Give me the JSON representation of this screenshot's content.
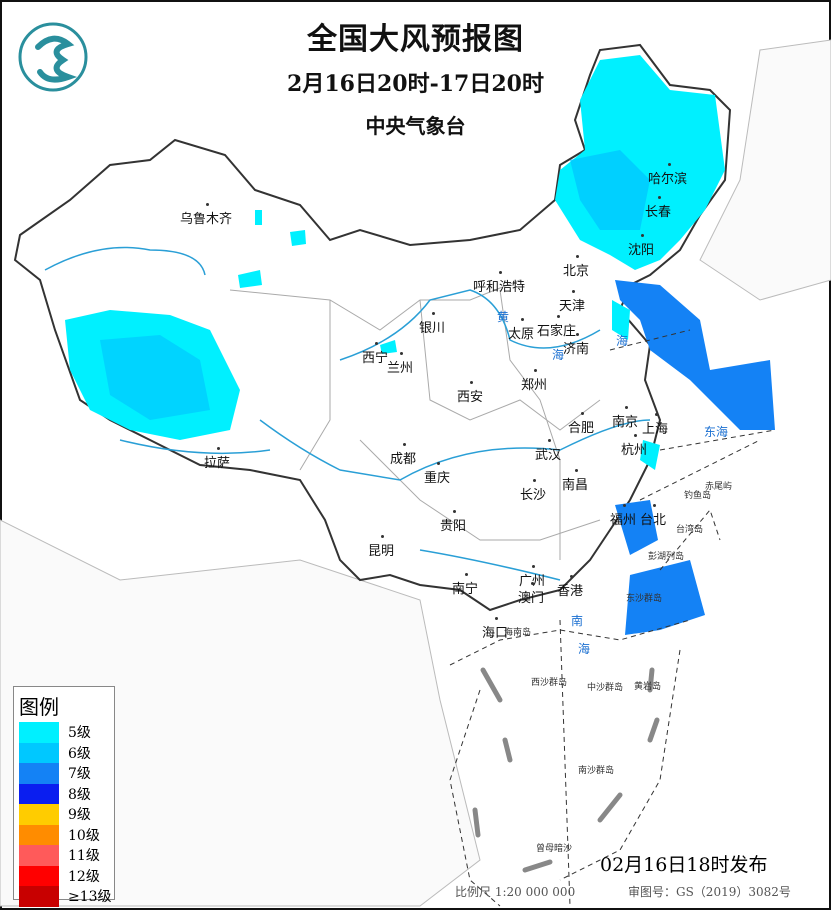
{
  "title": "全国大风预报图",
  "period": "2月16日20时-17日20时",
  "issuer": "中央气象台",
  "issued": "02月16日18时发布",
  "scale": "比例尺  1:20 000 000",
  "approval": "审图号：GS（2019）3082号",
  "legend": {
    "title": "图例",
    "items": [
      {
        "label": "5级",
        "color": "#00f0ff"
      },
      {
        "label": "6级",
        "color": "#00c8ff"
      },
      {
        "label": "7级",
        "color": "#1482f5"
      },
      {
        "label": "8级",
        "color": "#0a1ef0"
      },
      {
        "label": "9级",
        "color": "#ffcc00"
      },
      {
        "label": "10级",
        "color": "#ff8c00"
      },
      {
        "label": "11级",
        "color": "#ff5a5a"
      },
      {
        "label": "12级",
        "color": "#ff0000"
      },
      {
        "label": "≥13级",
        "color": "#c80000"
      }
    ]
  },
  "cities": [
    "乌鲁木齐",
    "哈尔滨",
    "长春",
    "沈阳",
    "北京",
    "呼和浩特",
    "天津",
    "银川",
    "太原",
    "石家庄",
    "济南",
    "西宁",
    "兰州",
    "郑州",
    "西安",
    "南京",
    "合肥",
    "上海",
    "杭州",
    "成都",
    "武汉",
    "拉萨",
    "重庆",
    "南昌",
    "长沙",
    "福州",
    "台北",
    "贵阳",
    "昆明",
    "广州",
    "香港",
    "南宁",
    "澳门",
    "海口"
  ],
  "seas": [
    "东海",
    "海",
    "南",
    "海",
    "黄",
    "海"
  ],
  "islands": [
    "赤尾屿",
    "钓鱼岛",
    "台湾岛",
    "彭湖列岛",
    "东沙群岛",
    "海南岛",
    "西沙群岛",
    "中沙群岛",
    "黄岩岛",
    "南沙群岛",
    "曾母暗沙"
  ]
}
